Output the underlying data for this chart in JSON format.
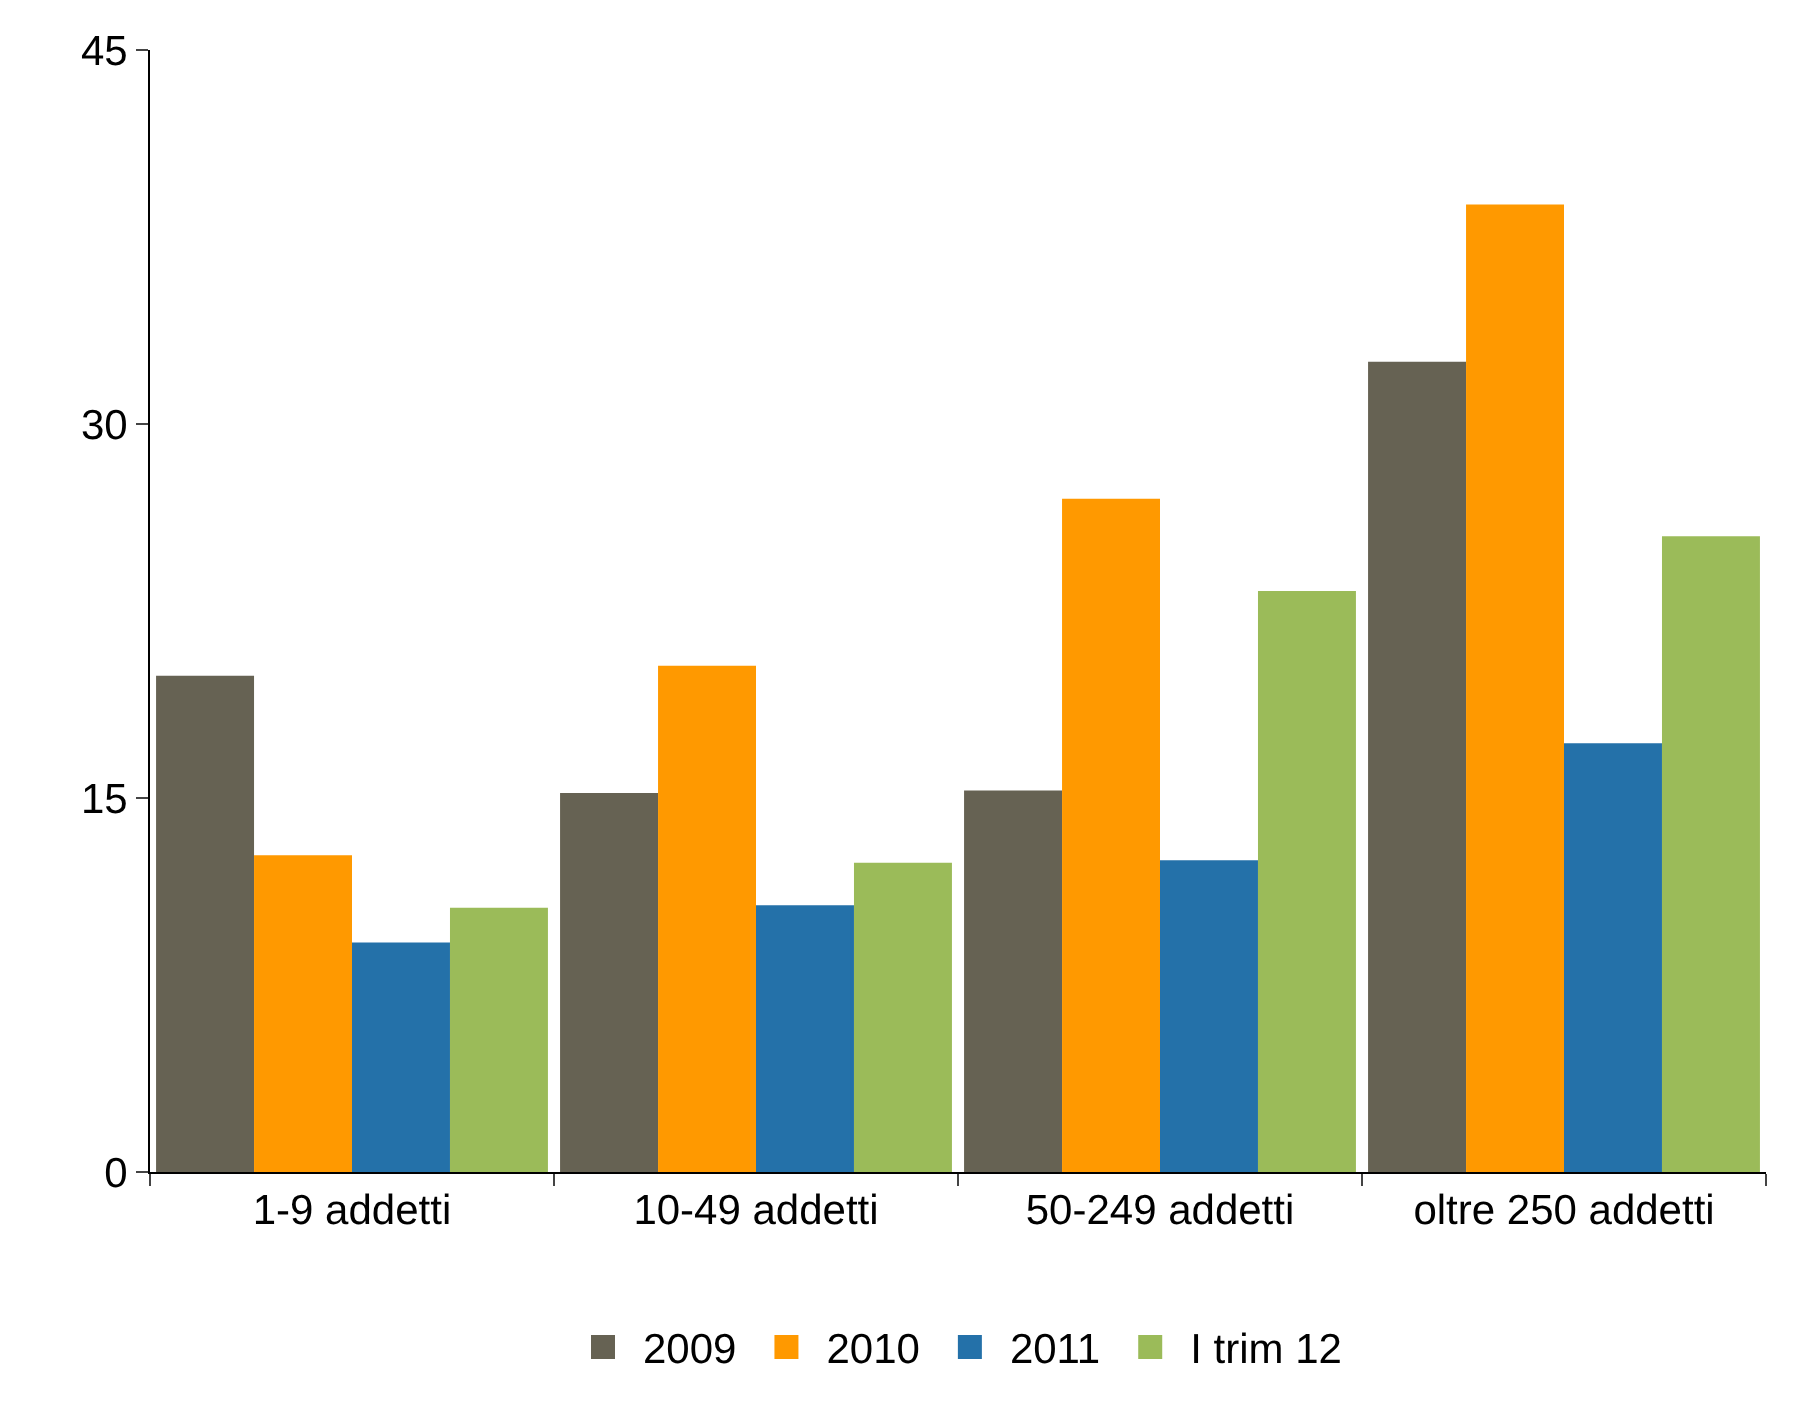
{
  "chart_data": {
    "type": "bar",
    "categories": [
      "1-9 addetti",
      "10-49 addetti",
      "50-249 addetti",
      "oltre 250 addetti"
    ],
    "series": [
      {
        "name": "2009",
        "color": "#666253",
        "values": [
          19.9,
          15.2,
          15.3,
          32.5
        ]
      },
      {
        "name": "2010",
        "color": "#ff9900",
        "values": [
          12.7,
          20.3,
          27.0,
          38.8
        ]
      },
      {
        "name": "2011",
        "color": "#2471a9",
        "values": [
          9.2,
          10.7,
          12.5,
          17.2
        ]
      },
      {
        "name": "I trim 12",
        "color": "#9bbb59",
        "values": [
          10.6,
          12.4,
          23.3,
          25.5
        ]
      }
    ],
    "ylim": [
      0,
      45
    ],
    "yticks": [
      0,
      15,
      30,
      45
    ],
    "grid": false,
    "legend": "bottom"
  }
}
